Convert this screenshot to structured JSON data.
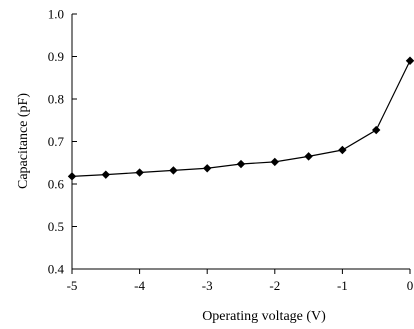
{
  "chart_data": {
    "type": "line",
    "title": "",
    "xlabel": "Operating voltage (V)",
    "ylabel": "Capacitance (pF)",
    "xlim": [
      -5,
      0
    ],
    "ylim": [
      0.4,
      1.0
    ],
    "x_ticks": [
      -5,
      -4,
      -3,
      -2,
      -1,
      0
    ],
    "x_tick_labels": [
      "-5",
      "-4",
      "-3",
      "-2",
      "-1",
      "0"
    ],
    "y_ticks": [
      0.4,
      0.5,
      0.6,
      0.7,
      0.8,
      0.9,
      1.0
    ],
    "y_tick_labels": [
      "0.4",
      "0.5",
      "0.6",
      "0.7",
      "0.8",
      "0.9",
      "1.0"
    ],
    "grid": false,
    "legend": "none",
    "marker": "diamond",
    "line_color": "#000000",
    "series": [
      {
        "x": [
          -5,
          -4.5,
          -4,
          -3.5,
          -3,
          -2.5,
          -2,
          -1.5,
          -1,
          -0.5,
          0
        ],
        "values": [
          0.618,
          0.622,
          0.627,
          0.632,
          0.637,
          0.647,
          0.652,
          0.665,
          0.68,
          0.727,
          0.89
        ]
      }
    ]
  }
}
